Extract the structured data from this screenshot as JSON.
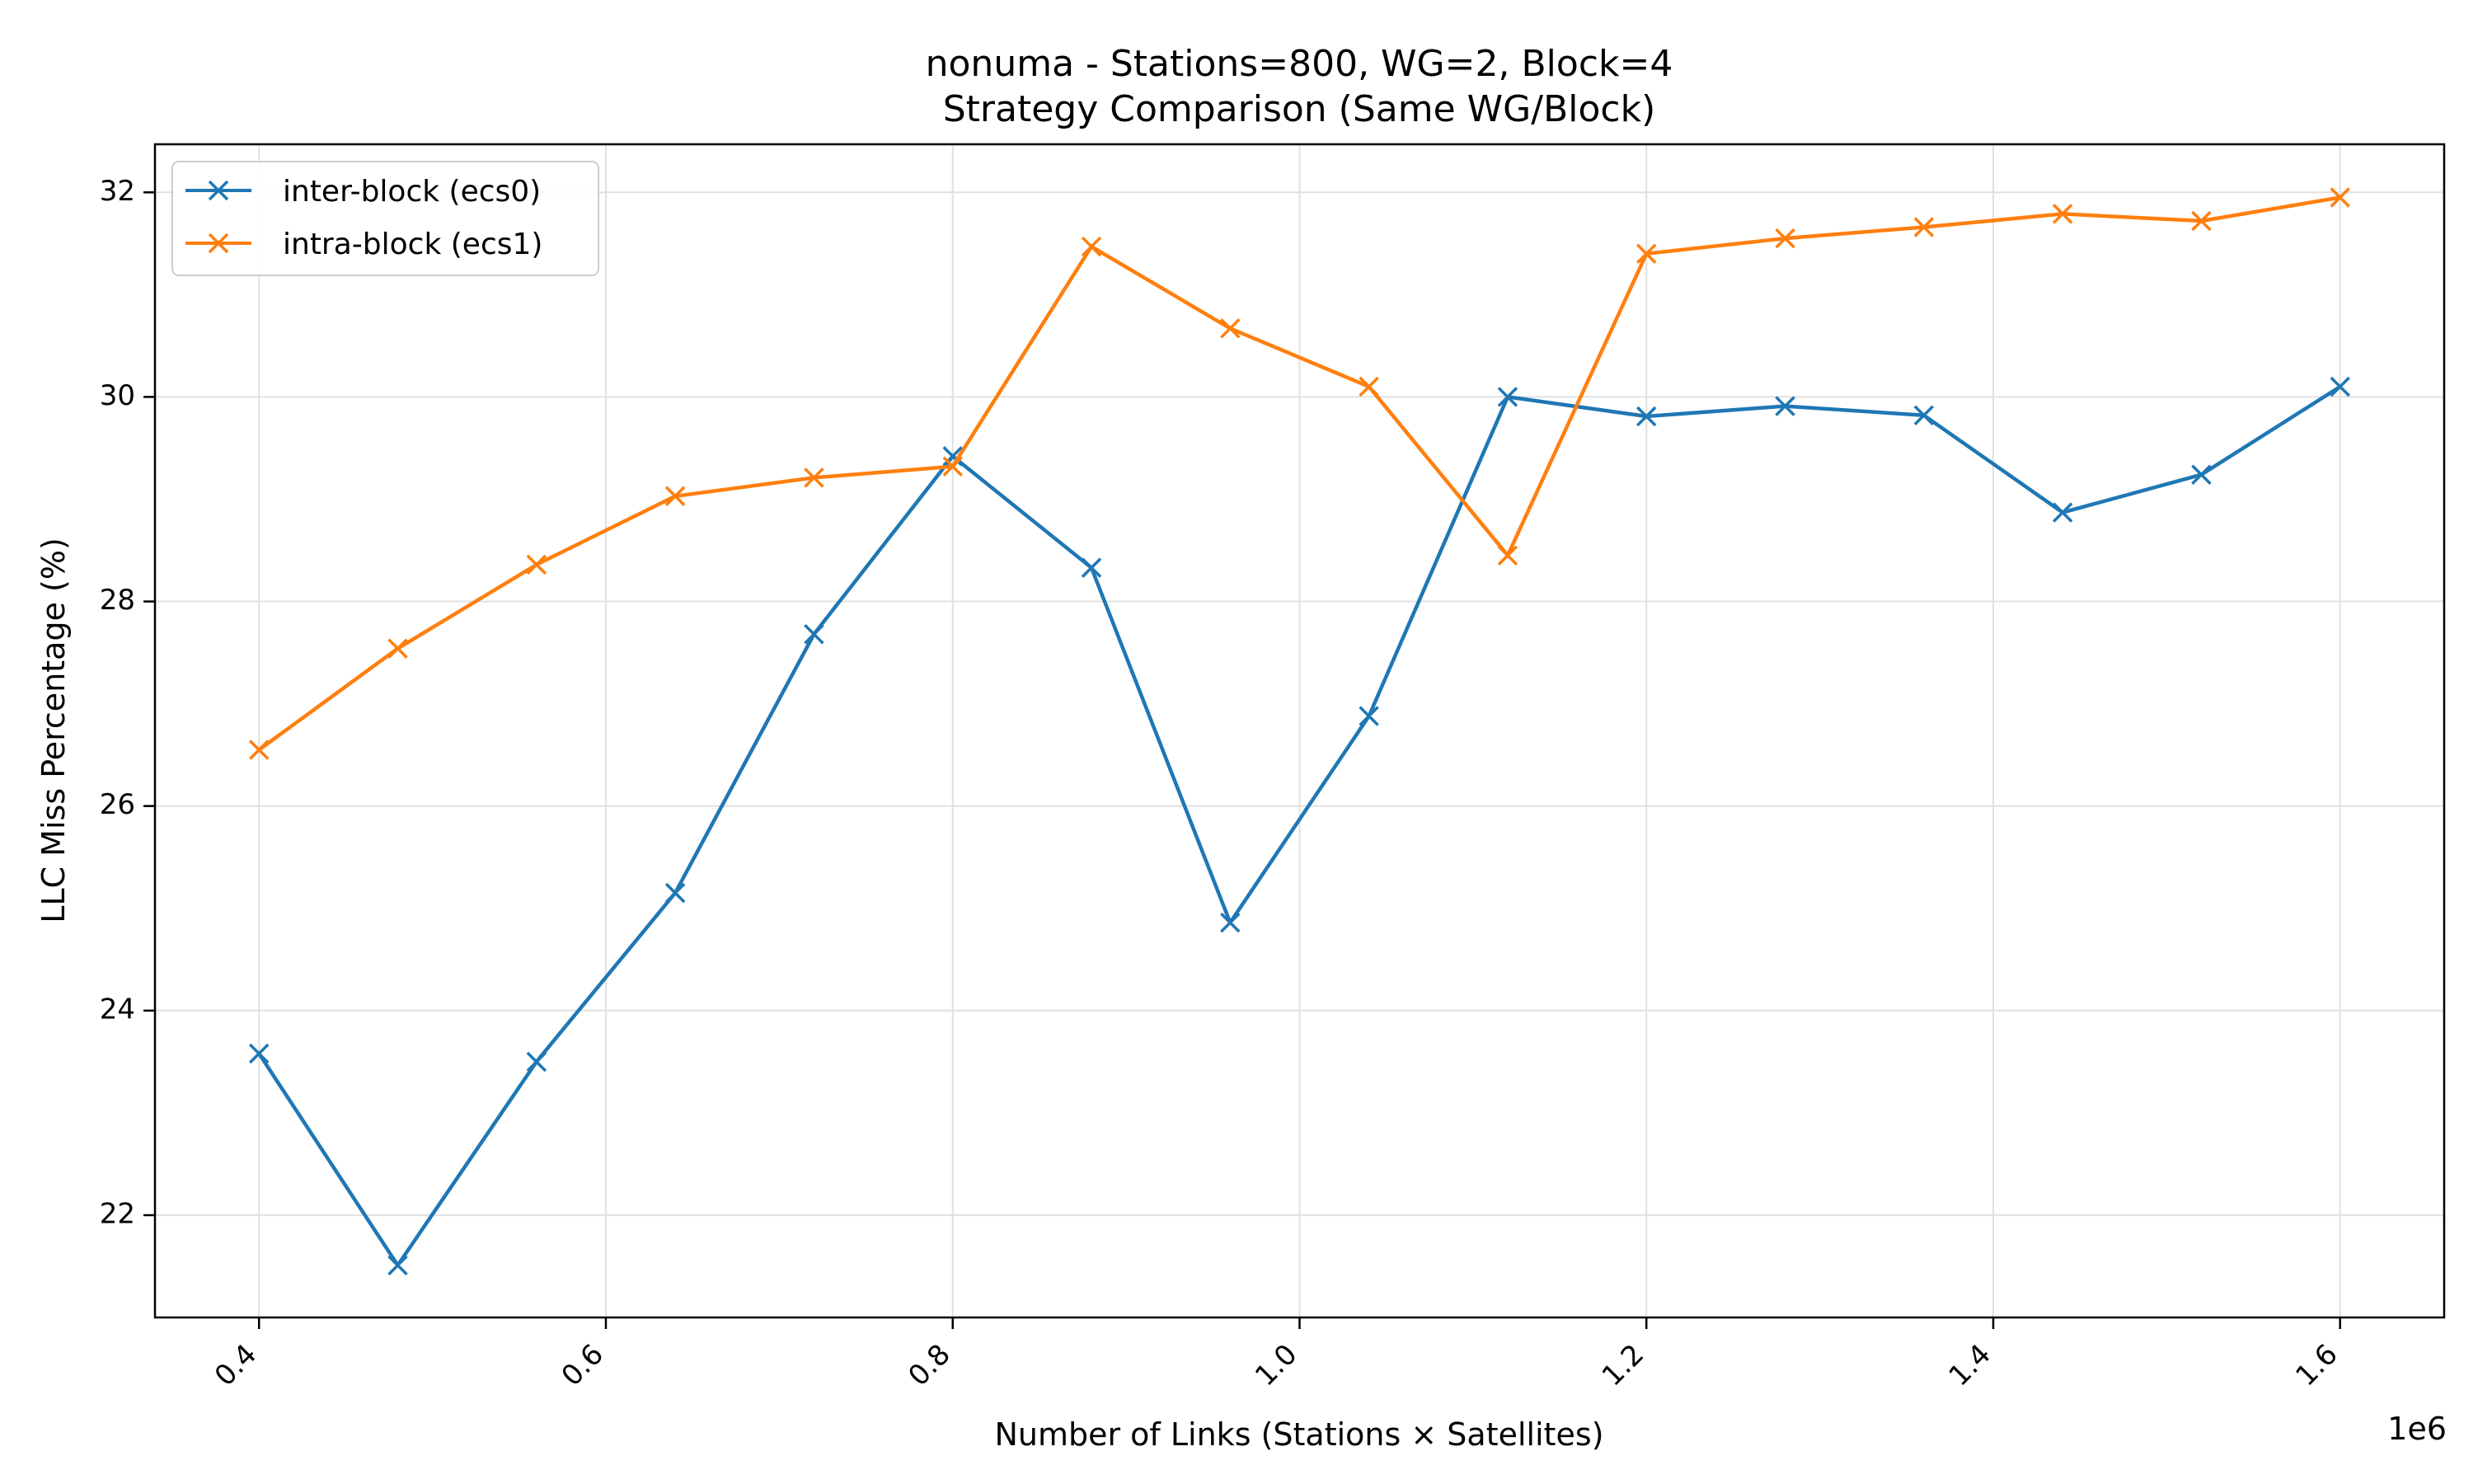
{
  "chart_data": {
    "type": "line",
    "title": "nonuma - Stations=800, WG=2, Block=4",
    "subtitle": "Strategy Comparison (Same WG/Block)",
    "xlabel": "Number of Links (Stations × Satellites)",
    "ylabel": "LLC Miss Percentage (%)",
    "x_offset_label": "1e6",
    "x": [
      0.4,
      0.48,
      0.56,
      0.64,
      0.72,
      0.8,
      0.88,
      0.96,
      1.04,
      1.12,
      1.2,
      1.28,
      1.36,
      1.44,
      1.52,
      1.6
    ],
    "xlim": [
      0.34,
      1.66
    ],
    "ylim": [
      21.0,
      32.47
    ],
    "xticks": [
      0.4,
      0.6,
      0.8,
      1.0,
      1.2,
      1.4,
      1.6
    ],
    "xtick_labels": [
      "0.4",
      "0.6",
      "0.8",
      "1.0",
      "1.2",
      "1.4",
      "1.6"
    ],
    "yticks": [
      22,
      24,
      26,
      28,
      30,
      32
    ],
    "ytick_labels": [
      "22",
      "24",
      "26",
      "28",
      "30",
      "32"
    ],
    "grid": true,
    "legend_position": "upper-left",
    "series": [
      {
        "name": "inter-block (ecs0)",
        "color": "#1f77b4",
        "marker": "x",
        "values": [
          23.58,
          21.51,
          23.5,
          25.15,
          27.68,
          29.42,
          28.33,
          24.86,
          26.88,
          30.0,
          29.81,
          29.91,
          29.82,
          28.87,
          29.24,
          30.1
        ]
      },
      {
        "name": "intra-block (ecs1)",
        "color": "#ff7f0e",
        "marker": "x",
        "values": [
          26.55,
          27.54,
          28.36,
          29.03,
          29.21,
          29.32,
          31.47,
          30.67,
          30.1,
          28.45,
          31.4,
          31.55,
          31.66,
          31.79,
          31.72,
          31.95
        ]
      }
    ]
  }
}
